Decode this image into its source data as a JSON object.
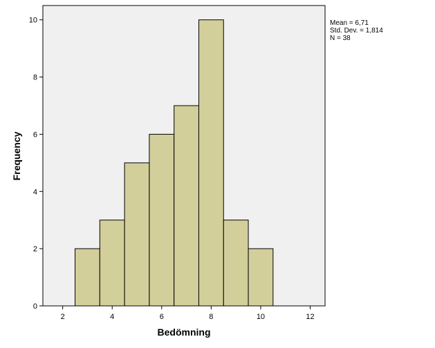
{
  "chart_data": {
    "type": "bar",
    "subtype": "histogram",
    "bins": [
      {
        "x0": 2.5,
        "x1": 3.5,
        "value": 2
      },
      {
        "x0": 3.5,
        "x1": 4.5,
        "value": 3
      },
      {
        "x0": 4.5,
        "x1": 5.5,
        "value": 5
      },
      {
        "x0": 5.5,
        "x1": 6.5,
        "value": 6
      },
      {
        "x0": 6.5,
        "x1": 7.5,
        "value": 7
      },
      {
        "x0": 7.5,
        "x1": 8.5,
        "value": 10
      },
      {
        "x0": 8.5,
        "x1": 9.5,
        "value": 3
      },
      {
        "x0": 9.5,
        "x1": 10.5,
        "value": 2
      }
    ],
    "title": "",
    "xlabel": "Bedömning",
    "ylabel": "Frequency",
    "xlim": [
      1.2,
      12.6
    ],
    "ylim": [
      0,
      10.5
    ],
    "xticks": [
      "2",
      "4",
      "6",
      "8",
      "10",
      "12"
    ],
    "yticks": [
      "0",
      "2",
      "4",
      "6",
      "8",
      "10"
    ],
    "grid": false,
    "stats": {
      "mean": "Mean = 6,71",
      "std": "Std. Dev. = 1,814",
      "n": "N = 38"
    },
    "colors": {
      "bar_fill": "#d3cf9b",
      "bar_stroke": "#000000",
      "plot_background": "#f0f0f0"
    }
  }
}
